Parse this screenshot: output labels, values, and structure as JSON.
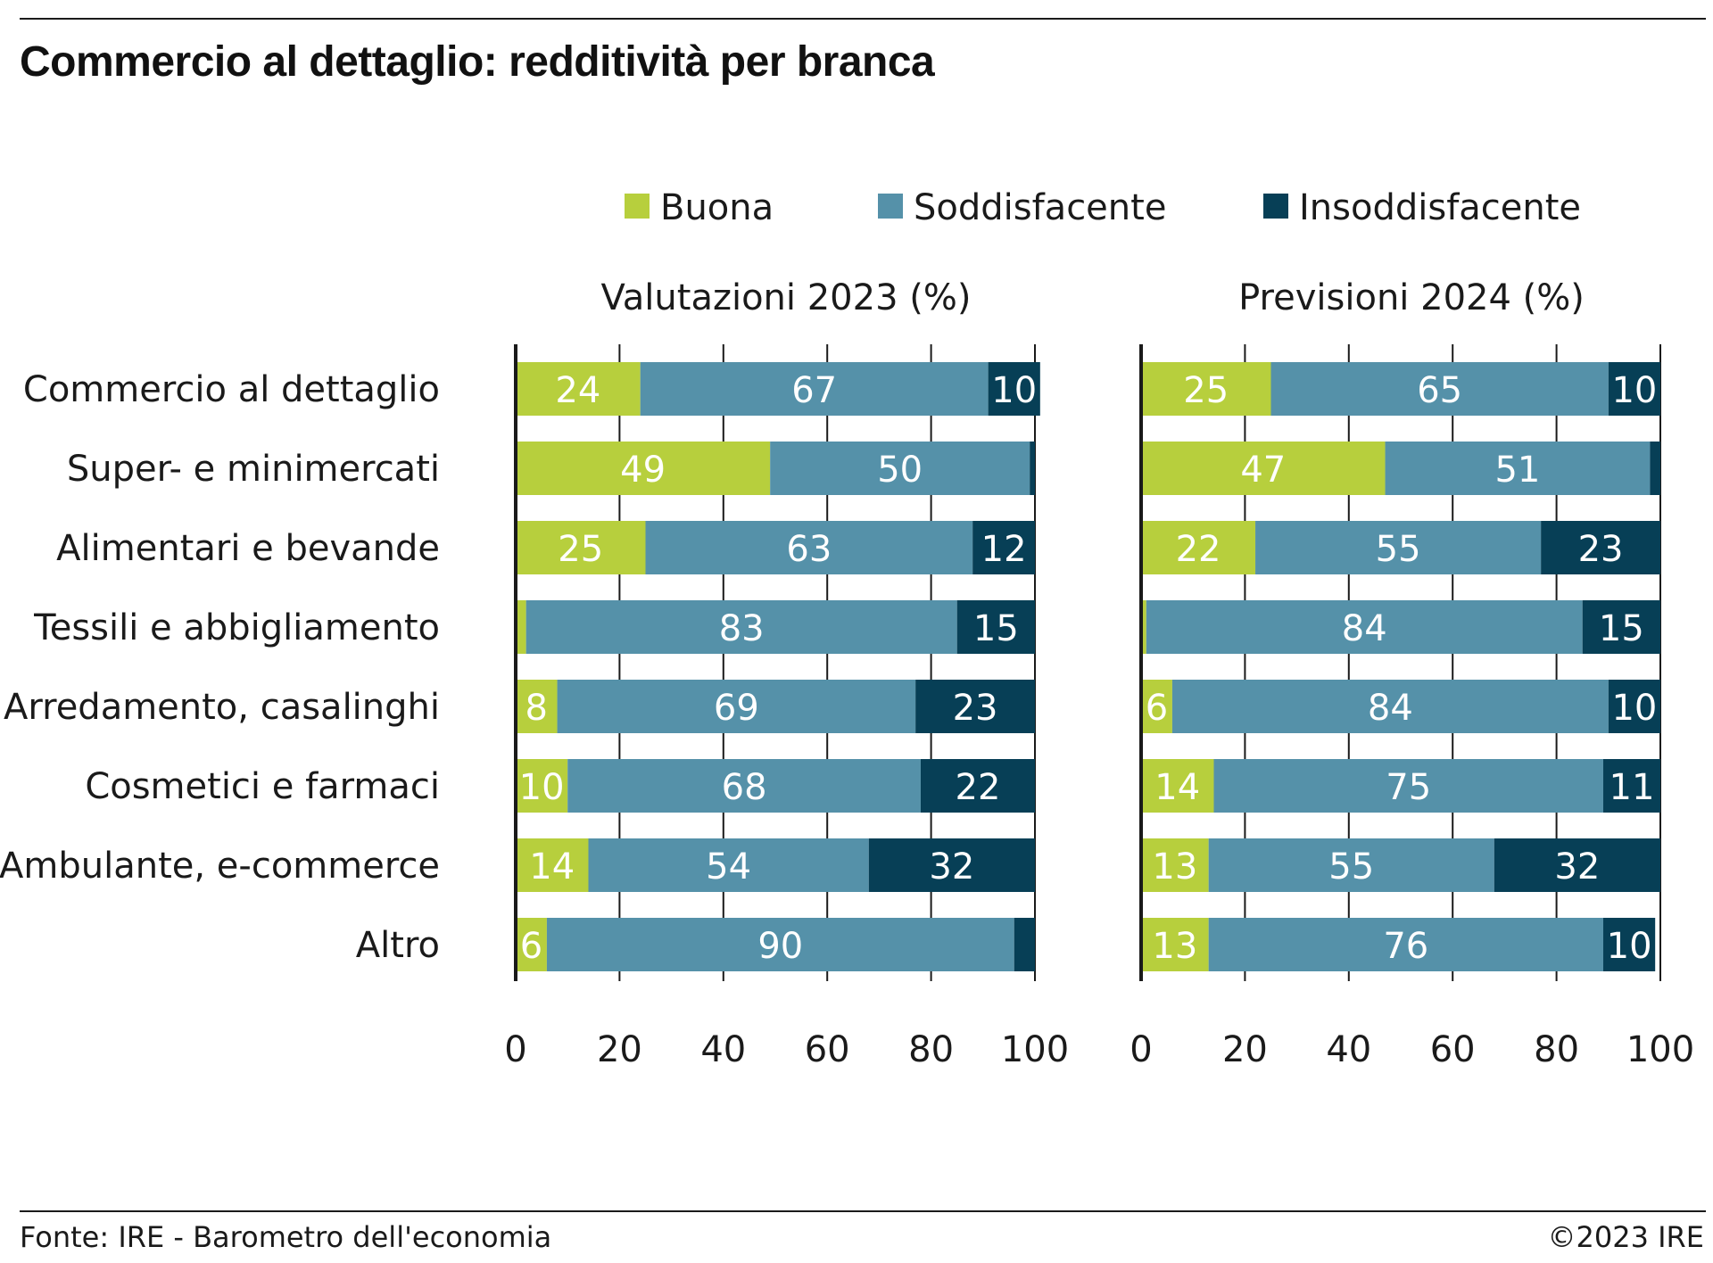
{
  "title": "Commercio al dettaglio: redditività per branca",
  "footer": {
    "source": "Fonte: IRE - Barometro dell'economia",
    "copyright": "©2023 IRE"
  },
  "colors": {
    "buona": "#b7cf3d",
    "soddisfacente": "#5591a9",
    "insoddisfacente": "#073f56"
  },
  "chart_data": [
    {
      "type": "bar",
      "orientation": "horizontal",
      "stacked": true,
      "title": "Valutazioni 2023 (%)",
      "categories": [
        "Commercio al dettaglio",
        "Super- e minimercati",
        "Alimentari e bevande",
        "Tessili e abbigliamento",
        "Arredamento, casalinghi",
        "Cosmetici e farmaci",
        "Ambulante, e-commerce",
        "Altro"
      ],
      "series": [
        {
          "name": "Buona",
          "values": [
            24,
            49,
            25,
            2,
            8,
            10,
            14,
            6
          ],
          "labels": [
            "24",
            "49",
            "25",
            "",
            "8",
            "10",
            "14",
            "6"
          ]
        },
        {
          "name": "Soddisfacente",
          "values": [
            67,
            50,
            63,
            83,
            69,
            68,
            54,
            90
          ],
          "labels": [
            "67",
            "50",
            "63",
            "83",
            "69",
            "68",
            "54",
            "90"
          ]
        },
        {
          "name": "Insoddisfacente",
          "values": [
            10,
            1,
            12,
            15,
            23,
            22,
            32,
            4
          ],
          "labels": [
            "10",
            "",
            "12",
            "15",
            "23",
            "22",
            "32",
            ""
          ]
        }
      ],
      "xlim": [
        0,
        100
      ],
      "xticks": [
        "0",
        "20",
        "40",
        "60",
        "80",
        "100"
      ],
      "legend": "top"
    },
    {
      "type": "bar",
      "orientation": "horizontal",
      "stacked": true,
      "title": "Previsioni 2024 (%)",
      "categories": [
        "Commercio al dettaglio",
        "Super- e minimercati",
        "Alimentari e bevande",
        "Tessili e abbigliamento",
        "Arredamento, casalinghi",
        "Cosmetici e farmaci",
        "Ambulante, e-commerce",
        "Altro"
      ],
      "series": [
        {
          "name": "Buona",
          "values": [
            25,
            47,
            22,
            1,
            6,
            14,
            13,
            13
          ],
          "labels": [
            "25",
            "47",
            "22",
            "",
            "6",
            "14",
            "13",
            "13"
          ]
        },
        {
          "name": "Soddisfacente",
          "values": [
            65,
            51,
            55,
            84,
            84,
            75,
            55,
            76
          ],
          "labels": [
            "65",
            "51",
            "55",
            "84",
            "84",
            "75",
            "55",
            "76"
          ]
        },
        {
          "name": "Insoddisfacente",
          "values": [
            10,
            2,
            23,
            15,
            10,
            11,
            32,
            10
          ],
          "labels": [
            "10",
            "",
            "23",
            "15",
            "10",
            "11",
            "32",
            "10"
          ]
        }
      ],
      "xlim": [
        0,
        100
      ],
      "xticks": [
        "0",
        "20",
        "40",
        "60",
        "80",
        "100"
      ],
      "legend": "top"
    }
  ]
}
